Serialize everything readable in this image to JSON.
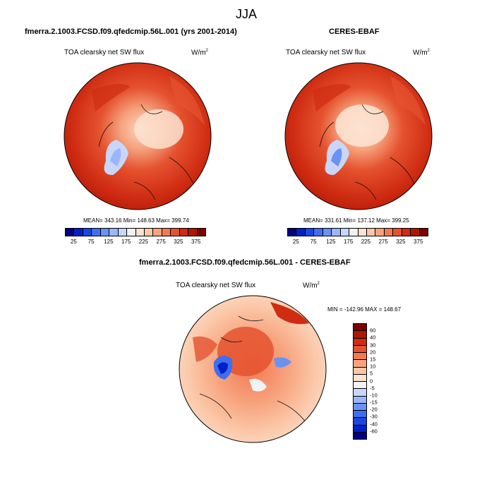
{
  "season": "JJA",
  "panels": [
    {
      "title": "fmerra.2.1003.FCSD.f09.qfedcmip.56L.001 (yrs 2001-2014)",
      "variable": "TOA clearsky net SW flux",
      "units_base": "W/m",
      "units_exp": "2",
      "stats": "MEAN= 343.16  Min= 148.63  Max= 399.74"
    },
    {
      "title": "CERES-EBAF",
      "variable": "TOA clearsky net SW flux",
      "units_base": "W/m",
      "units_exp": "2",
      "stats": "MEAN= 331.61  Min= 137.12  Max= 399.25"
    },
    {
      "title": "fmerra.2.1003.FCSD.f09.qfedcmip.56L.001 - CERES-EBAF",
      "variable": "TOA clearsky net SW flux",
      "units_base": "W/m",
      "units_exp": "2",
      "stats": "MIN = -142.96 MAX = 148.67"
    }
  ],
  "abs_colorbar": {
    "colors": [
      "#00007f",
      "#0020c8",
      "#1848e0",
      "#3f6ef0",
      "#6a92f4",
      "#9bb6f8",
      "#c8d6fa",
      "#f2f2f2",
      "#fce2d0",
      "#fbc7a8",
      "#f7a47e",
      "#f17a55",
      "#e5522f",
      "#cf2c12",
      "#b01606",
      "#7c0000"
    ],
    "labels": [
      "25",
      "75",
      "125",
      "175",
      "225",
      "275",
      "325",
      "375"
    ]
  },
  "diff_colorbar": {
    "colors": [
      "#7c0000",
      "#b01606",
      "#cf2c12",
      "#e5522f",
      "#f17a55",
      "#f7a47e",
      "#fbc7a8",
      "#fce2d0",
      "#f2f2f2",
      "#c8d6fa",
      "#9bb6f8",
      "#6a92f4",
      "#3f6ef0",
      "#1848e0",
      "#0020c8",
      "#00007f"
    ],
    "labels": [
      "60",
      "40",
      "30",
      "20",
      "15",
      "10",
      "5",
      "0",
      "-5",
      "-10",
      "-15",
      "-20",
      "-30",
      "-40",
      "-60"
    ]
  }
}
